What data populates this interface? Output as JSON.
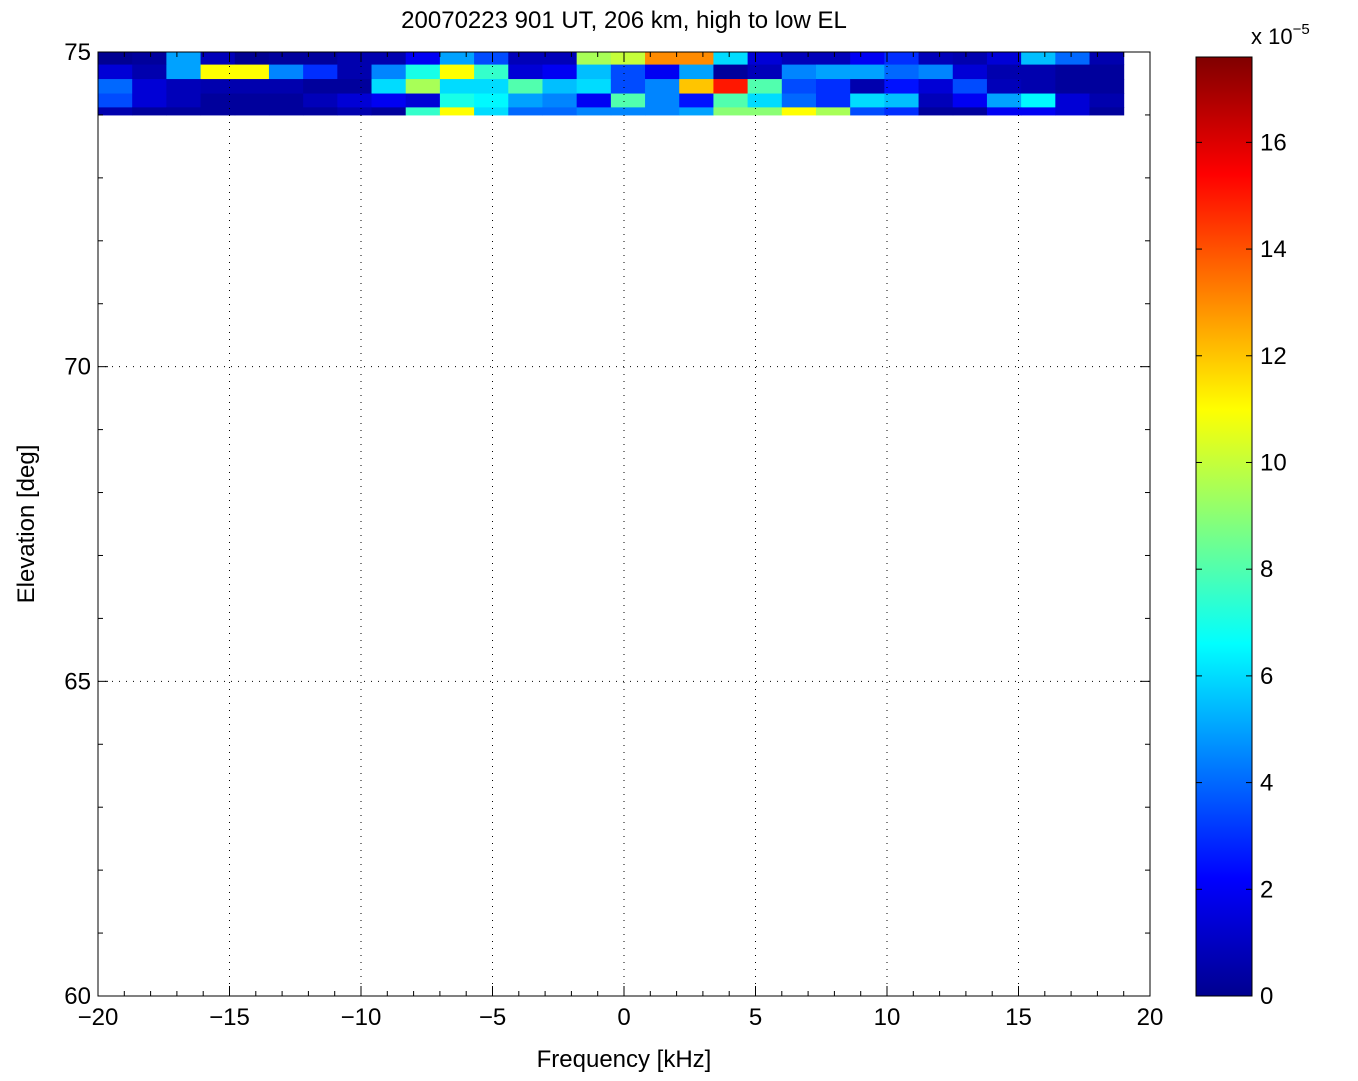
{
  "chart_data": {
    "type": "heatmap",
    "title": "20070223 901 UT, 206 km, high to low EL",
    "xlabel": "Frequency [kHz]",
    "ylabel": "Elevation [deg]",
    "xlim": [
      -20,
      20
    ],
    "ylim": [
      60,
      75
    ],
    "xticks": [
      -20,
      -15,
      -10,
      -5,
      0,
      5,
      10,
      15,
      20
    ],
    "xtick_labels": [
      "−20",
      "−15",
      "−10",
      "−5",
      "0",
      "5",
      "10",
      "15",
      "20"
    ],
    "yticks": [
      60,
      65,
      70,
      75
    ],
    "ytick_labels": [
      "60",
      "65",
      "70",
      "75"
    ],
    "grid": true,
    "colormap": "jet",
    "colorbar": {
      "min": 0,
      "max": 17.6,
      "ticks": [
        0,
        2,
        4,
        6,
        8,
        10,
        12,
        14,
        16
      ],
      "tick_labels": [
        "0",
        "2",
        "4",
        "6",
        "8",
        "10",
        "12",
        "14",
        "16"
      ],
      "exponent_base": "x 10",
      "exponent": "−5"
    },
    "x_edges": [
      -20,
      -18.7,
      -17.4,
      -16.1,
      -14.8,
      -13.5,
      -12.2,
      -10.9,
      -9.6,
      -8.3,
      -7.0,
      -5.7,
      -4.4,
      -3.1,
      -1.8,
      -0.5,
      0.8,
      2.1,
      3.4,
      4.7,
      6.0,
      7.3,
      8.6,
      9.9,
      11.2,
      12.5,
      13.8,
      15.1,
      16.4,
      17.7,
      19.0
    ],
    "y_edges": [
      75.0,
      74.8,
      74.57,
      74.34,
      74.12,
      74.0
    ],
    "values": [
      [
        0.3,
        0.5,
        5.0,
        1.0,
        0.3,
        0.5,
        0.5,
        0.8,
        0.8,
        2.0,
        5.0,
        3.5,
        1.0,
        1.0,
        9.5,
        10.0,
        13.0,
        13.0,
        6.0,
        1.5,
        1.0,
        1.0,
        2.0,
        3.0,
        1.0,
        0.8,
        1.5,
        5.5,
        4.0,
        0.8
      ],
      [
        1.5,
        0.8,
        5.0,
        11.0,
        11.0,
        4.5,
        3.0,
        0.8,
        4.5,
        7.0,
        11.0,
        7.5,
        1.5,
        2.0,
        5.5,
        3.5,
        2.0,
        5.0,
        0.5,
        1.0,
        4.5,
        5.0,
        5.0,
        4.0,
        4.5,
        1.5,
        0.8,
        0.8,
        0.5,
        0.5
      ],
      [
        4.0,
        1.5,
        1.0,
        0.8,
        0.8,
        0.8,
        0.5,
        0.5,
        6.0,
        9.5,
        6.0,
        6.0,
        8.0,
        5.5,
        6.0,
        3.5,
        4.5,
        12.0,
        15.0,
        8.0,
        3.5,
        3.0,
        0.8,
        2.5,
        1.5,
        3.5,
        1.0,
        0.8,
        0.5,
        0.5
      ],
      [
        3.5,
        1.5,
        1.0,
        0.5,
        0.5,
        0.5,
        1.0,
        1.5,
        2.0,
        1.5,
        7.0,
        6.5,
        5.0,
        4.5,
        2.0,
        8.0,
        4.5,
        2.5,
        8.0,
        6.0,
        4.0,
        3.0,
        6.0,
        5.5,
        1.0,
        2.0,
        5.0,
        6.5,
        1.5,
        0.8
      ],
      [
        0.8,
        0.5,
        0.5,
        0.5,
        0.5,
        0.5,
        0.5,
        0.8,
        0.5,
        7.5,
        11.0,
        6.0,
        4.0,
        4.0,
        4.5,
        4.5,
        4.5,
        5.0,
        9.0,
        9.0,
        11.0,
        9.5,
        3.5,
        3.0,
        0.5,
        0.5,
        2.0,
        2.0,
        1.5,
        0.5
      ]
    ]
  }
}
